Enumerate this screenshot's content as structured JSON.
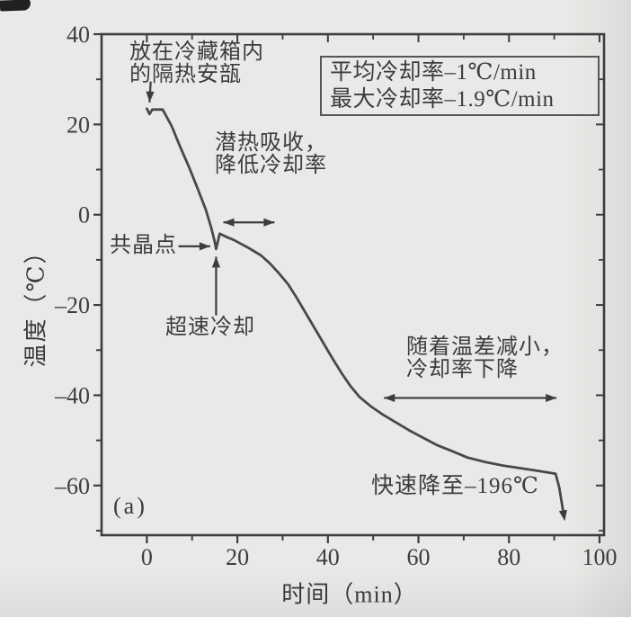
{
  "chart_data": {
    "type": "line",
    "title": "",
    "xlabel": "时间（min）",
    "ylabel": "温度（℃）",
    "panel_label": "(a)",
    "xlim": [
      -10,
      101
    ],
    "ylim": [
      -71,
      40
    ],
    "grid": false,
    "ink_color": "#3d3d3d",
    "paper_color": "#e9eae7",
    "xticks": {
      "major": [
        0,
        20,
        40,
        60,
        80,
        100
      ],
      "labels": [
        "0",
        "20",
        "40",
        "60",
        "80",
        "100"
      ],
      "minor": [
        10,
        30,
        50,
        70,
        90
      ]
    },
    "yticks": {
      "major": [
        40,
        20,
        0,
        -20,
        -40,
        -60
      ],
      "labels": [
        "40",
        "20",
        "0",
        "–20",
        "–40",
        "–60"
      ],
      "minor": [
        30,
        10,
        -10,
        -30,
        -50,
        -70
      ]
    },
    "legend": {
      "position": "top-right",
      "border": true,
      "lines": [
        "平均冷却率–1℃/min",
        "最大冷却率–1.9℃/min"
      ]
    },
    "series": [
      {
        "name": "cooling-curve",
        "color": "#484848",
        "end_marker": "arrow-down",
        "points": [
          [
            0,
            23.5
          ],
          [
            0.6,
            22.3
          ],
          [
            1.2,
            23.3
          ],
          [
            3.5,
            23.3
          ],
          [
            5.5,
            19.6
          ],
          [
            7.3,
            15.2
          ],
          [
            9.3,
            10.6
          ],
          [
            11.3,
            5.6
          ],
          [
            13,
            1.2
          ],
          [
            14.2,
            -2.8
          ],
          [
            15,
            -6.0
          ],
          [
            15.3,
            -7.6
          ],
          [
            16.1,
            -4.2
          ],
          [
            17.3,
            -4.8
          ],
          [
            19.2,
            -5.6
          ],
          [
            22.2,
            -7.2
          ],
          [
            25.2,
            -9.0
          ],
          [
            27.2,
            -10.8
          ],
          [
            29.2,
            -13.0
          ],
          [
            31.2,
            -15.4
          ],
          [
            33.1,
            -18.4
          ],
          [
            35.1,
            -21.8
          ],
          [
            37.1,
            -25.2
          ],
          [
            39.1,
            -28.6
          ],
          [
            41.1,
            -32.0
          ],
          [
            43.1,
            -35.2
          ],
          [
            45,
            -38.0
          ],
          [
            47,
            -40.4
          ],
          [
            49.4,
            -42.4
          ],
          [
            52,
            -44.2
          ],
          [
            55,
            -46.0
          ],
          [
            58,
            -47.8
          ],
          [
            61,
            -49.4
          ],
          [
            64,
            -51.0
          ],
          [
            67,
            -52.2
          ],
          [
            70.8,
            -53.8
          ],
          [
            74.8,
            -54.8
          ],
          [
            78.8,
            -55.6
          ],
          [
            82.8,
            -56.2
          ],
          [
            86.7,
            -56.8
          ],
          [
            90.3,
            -57.4
          ],
          [
            91.1,
            -60.4
          ],
          [
            92.1,
            -66.5
          ]
        ]
      }
    ],
    "annotations": {
      "ampoule": {
        "lines": [
          "放在冷藏箱内",
          "的隔热安瓿"
        ]
      },
      "latent": {
        "lines": [
          "潜热吸收，",
          "降低冷却率"
        ]
      },
      "eutectic": {
        "lines": [
          "共晶点"
        ]
      },
      "rapid": {
        "lines": [
          "超速冷却"
        ]
      },
      "tempdiff": {
        "lines": [
          "随着温差减小，",
          "冷却率下降"
        ]
      },
      "fast": {
        "lines": [
          "快速降至–196℃"
        ]
      }
    },
    "arrows": [
      {
        "name": "ampoule-arrow",
        "x1": 0.85,
        "y1": 29.5,
        "x2": 0.6,
        "y2": 24.9,
        "heads": "end"
      },
      {
        "name": "eutectic-arrow",
        "x1": 7.0,
        "y1": -7.0,
        "x2": 14.0,
        "y2": -7.0,
        "heads": "end"
      },
      {
        "name": "supercool-arrow",
        "x1": 15.3,
        "y1": -22.3,
        "x2": 15.3,
        "y2": -9.3,
        "heads": "end"
      },
      {
        "name": "plateau-span-arrow",
        "x1": 16.9,
        "y1": -1.7,
        "x2": 28.2,
        "y2": -1.7,
        "heads": "both"
      },
      {
        "name": "tempdiff-span-arrow",
        "x1": 52.4,
        "y1": -40.6,
        "x2": 90.5,
        "y2": -40.6,
        "heads": "both"
      }
    ]
  }
}
